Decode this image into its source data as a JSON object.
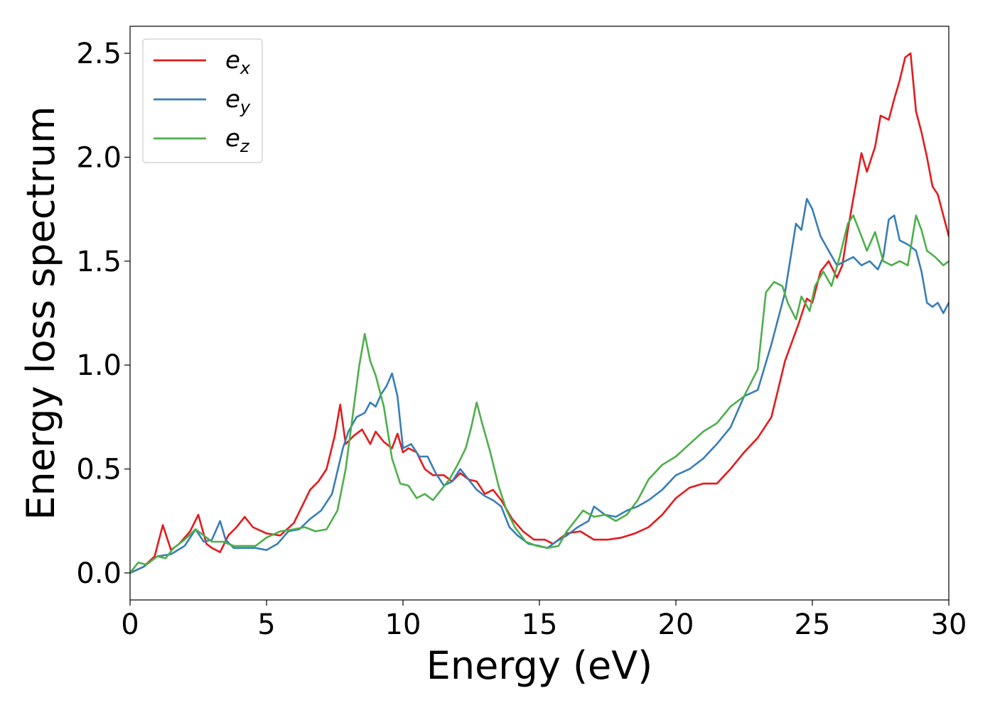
{
  "chart_data": {
    "type": "line",
    "title": "",
    "xlabel": "Energy (eV)",
    "ylabel": "Energy loss spectrum",
    "xlim": [
      0,
      30
    ],
    "ylim": [
      -0.13,
      2.63
    ],
    "x_ticks": [
      0,
      5,
      10,
      15,
      20,
      25,
      30
    ],
    "x_tick_labels": [
      "0",
      "5",
      "10",
      "15",
      "20",
      "25",
      "30"
    ],
    "y_ticks": [
      0.0,
      0.5,
      1.0,
      1.5,
      2.0,
      2.5
    ],
    "y_tick_labels": [
      "0.0",
      "0.5",
      "1.0",
      "1.5",
      "2.0",
      "2.5"
    ],
    "grid": false,
    "legend_position": "top-left",
    "series": [
      {
        "name": "e_x",
        "legend_base": "e",
        "legend_sub": "x",
        "color": "#e41a1c",
        "x": [
          0,
          0.5,
          0.9,
          1.2,
          1.5,
          1.8,
          2.2,
          2.5,
          2.8,
          3.0,
          3.3,
          3.6,
          3.9,
          4.2,
          4.5,
          5.0,
          5.5,
          6.0,
          6.3,
          6.6,
          6.9,
          7.2,
          7.5,
          7.7,
          7.9,
          8.2,
          8.5,
          8.8,
          9.0,
          9.3,
          9.6,
          9.8,
          10.0,
          10.2,
          10.5,
          10.8,
          11.1,
          11.5,
          11.8,
          12.1,
          12.4,
          12.7,
          13.0,
          13.3,
          13.6,
          14.0,
          14.4,
          14.8,
          15.2,
          15.5,
          16.0,
          16.5,
          17.0,
          17.5,
          18.0,
          18.5,
          19.0,
          19.5,
          20.0,
          20.5,
          21.0,
          21.5,
          22.0,
          22.5,
          23.0,
          23.5,
          24.0,
          24.5,
          24.8,
          25.0,
          25.3,
          25.6,
          25.9,
          26.1,
          26.3,
          26.5,
          26.8,
          27.0,
          27.3,
          27.5,
          27.8,
          28.0,
          28.2,
          28.4,
          28.6,
          28.8,
          29.0,
          29.2,
          29.4,
          29.6,
          29.8,
          30.0
        ],
        "values": [
          0.0,
          0.03,
          0.08,
          0.23,
          0.11,
          0.14,
          0.2,
          0.28,
          0.14,
          0.12,
          0.1,
          0.18,
          0.22,
          0.27,
          0.22,
          0.19,
          0.18,
          0.24,
          0.32,
          0.4,
          0.44,
          0.5,
          0.66,
          0.81,
          0.62,
          0.66,
          0.69,
          0.62,
          0.68,
          0.63,
          0.6,
          0.67,
          0.58,
          0.6,
          0.58,
          0.5,
          0.47,
          0.47,
          0.44,
          0.48,
          0.45,
          0.44,
          0.38,
          0.4,
          0.35,
          0.26,
          0.2,
          0.16,
          0.16,
          0.14,
          0.19,
          0.2,
          0.16,
          0.16,
          0.17,
          0.19,
          0.22,
          0.28,
          0.36,
          0.41,
          0.43,
          0.43,
          0.5,
          0.58,
          0.65,
          0.75,
          1.02,
          1.2,
          1.32,
          1.3,
          1.45,
          1.5,
          1.42,
          1.48,
          1.65,
          1.8,
          2.02,
          1.93,
          2.05,
          2.2,
          2.18,
          2.28,
          2.37,
          2.48,
          2.5,
          2.22,
          2.12,
          2.0,
          1.86,
          1.82,
          1.72,
          1.62
        ]
      },
      {
        "name": "e_y",
        "legend_base": "e",
        "legend_sub": "y",
        "color": "#377eb8",
        "x": [
          0,
          0.5,
          1.0,
          1.5,
          2.0,
          2.4,
          2.7,
          3.0,
          3.3,
          3.5,
          3.8,
          4.2,
          4.6,
          5.0,
          5.4,
          5.8,
          6.2,
          6.6,
          7.0,
          7.4,
          7.8,
          8.0,
          8.3,
          8.6,
          8.8,
          9.0,
          9.2,
          9.4,
          9.6,
          9.8,
          10.0,
          10.3,
          10.6,
          10.9,
          11.2,
          11.5,
          11.8,
          12.1,
          12.4,
          12.7,
          13.0,
          13.3,
          13.6,
          13.9,
          14.2,
          14.6,
          15.0,
          15.3,
          15.6,
          16.0,
          16.4,
          16.8,
          17.0,
          17.4,
          17.8,
          18.2,
          18.6,
          19.0,
          19.5,
          20.0,
          20.5,
          21.0,
          21.5,
          22.0,
          22.5,
          23.0,
          23.5,
          24.0,
          24.4,
          24.6,
          24.8,
          25.0,
          25.3,
          25.6,
          25.9,
          26.2,
          26.5,
          26.8,
          27.1,
          27.4,
          27.6,
          27.8,
          28.0,
          28.2,
          28.5,
          28.8,
          29.0,
          29.2,
          29.4,
          29.6,
          29.8,
          30.0
        ],
        "values": [
          0.0,
          0.03,
          0.08,
          0.09,
          0.13,
          0.21,
          0.15,
          0.16,
          0.25,
          0.16,
          0.12,
          0.12,
          0.12,
          0.11,
          0.14,
          0.2,
          0.21,
          0.26,
          0.3,
          0.38,
          0.6,
          0.68,
          0.75,
          0.77,
          0.82,
          0.8,
          0.86,
          0.9,
          0.96,
          0.85,
          0.6,
          0.62,
          0.56,
          0.56,
          0.48,
          0.42,
          0.44,
          0.5,
          0.45,
          0.4,
          0.37,
          0.35,
          0.32,
          0.22,
          0.18,
          0.14,
          0.13,
          0.12,
          0.15,
          0.18,
          0.22,
          0.25,
          0.32,
          0.28,
          0.27,
          0.3,
          0.32,
          0.35,
          0.4,
          0.47,
          0.5,
          0.55,
          0.62,
          0.7,
          0.85,
          0.88,
          1.1,
          1.35,
          1.68,
          1.65,
          1.8,
          1.75,
          1.62,
          1.55,
          1.48,
          1.5,
          1.52,
          1.48,
          1.5,
          1.46,
          1.52,
          1.7,
          1.72,
          1.6,
          1.58,
          1.55,
          1.45,
          1.3,
          1.28,
          1.3,
          1.25,
          1.3
        ]
      },
      {
        "name": "e_z",
        "legend_base": "e",
        "legend_sub": "z",
        "color": "#4daf4a",
        "x": [
          0,
          0.3,
          0.6,
          1.0,
          1.3,
          1.6,
          2.0,
          2.4,
          2.7,
          3.0,
          3.4,
          3.8,
          4.2,
          4.6,
          5.0,
          5.5,
          6.0,
          6.4,
          6.8,
          7.2,
          7.6,
          7.9,
          8.2,
          8.4,
          8.6,
          8.8,
          9.0,
          9.3,
          9.6,
          9.9,
          10.2,
          10.5,
          10.8,
          11.1,
          11.4,
          11.7,
          12.0,
          12.3,
          12.5,
          12.7,
          12.9,
          13.2,
          13.5,
          13.8,
          14.1,
          14.5,
          14.9,
          15.3,
          15.7,
          16.0,
          16.3,
          16.6,
          17.0,
          17.4,
          17.8,
          18.2,
          18.6,
          19.0,
          19.5,
          20.0,
          20.5,
          21.0,
          21.5,
          22.0,
          22.5,
          23.0,
          23.3,
          23.6,
          23.9,
          24.1,
          24.4,
          24.6,
          24.9,
          25.1,
          25.4,
          25.7,
          26.0,
          26.3,
          26.5,
          26.8,
          27.0,
          27.3,
          27.6,
          27.9,
          28.2,
          28.5,
          28.8,
          29.0,
          29.2,
          29.5,
          29.8,
          30.0
        ],
        "values": [
          0.0,
          0.05,
          0.04,
          0.08,
          0.07,
          0.12,
          0.16,
          0.21,
          0.18,
          0.15,
          0.15,
          0.13,
          0.13,
          0.13,
          0.17,
          0.2,
          0.21,
          0.22,
          0.2,
          0.21,
          0.3,
          0.5,
          0.8,
          1.0,
          1.15,
          1.02,
          0.95,
          0.8,
          0.55,
          0.43,
          0.42,
          0.36,
          0.38,
          0.35,
          0.4,
          0.45,
          0.52,
          0.6,
          0.7,
          0.82,
          0.72,
          0.58,
          0.42,
          0.3,
          0.22,
          0.15,
          0.13,
          0.12,
          0.13,
          0.2,
          0.25,
          0.3,
          0.27,
          0.28,
          0.25,
          0.28,
          0.35,
          0.45,
          0.52,
          0.56,
          0.62,
          0.68,
          0.72,
          0.8,
          0.85,
          0.98,
          1.35,
          1.4,
          1.38,
          1.3,
          1.22,
          1.33,
          1.26,
          1.38,
          1.45,
          1.38,
          1.52,
          1.68,
          1.72,
          1.62,
          1.55,
          1.64,
          1.5,
          1.48,
          1.5,
          1.48,
          1.72,
          1.65,
          1.55,
          1.52,
          1.48,
          1.5
        ]
      }
    ]
  }
}
